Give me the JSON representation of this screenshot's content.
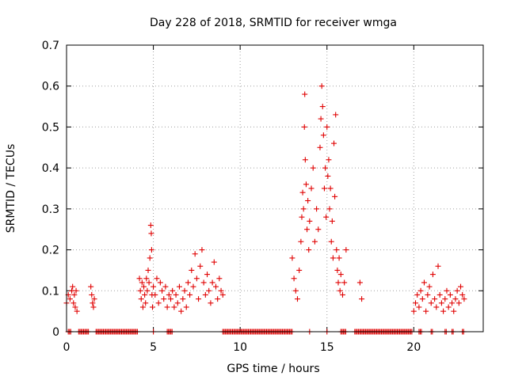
{
  "chart_data": {
    "type": "scatter",
    "title": "Day 228 of 2018, SRMTID for receiver wmga",
    "xlabel": "GPS time / hours",
    "ylabel": "SRMTID / TECUs",
    "xlim": [
      0,
      24
    ],
    "ylim": [
      0,
      0.7
    ],
    "xticks": [
      0,
      5,
      10,
      15,
      20
    ],
    "yticks": [
      0,
      0.1,
      0.2,
      0.3,
      0.4,
      0.5,
      0.6,
      0.7
    ],
    "ytick_labels": [
      "0",
      "0.1",
      "0.2",
      "0.3",
      "0.4",
      "0.5",
      "0.6",
      "0.7"
    ],
    "grid": true,
    "marker": "+",
    "color": "#e00000",
    "series": [
      {
        "name": "SRMTID",
        "points": [
          [
            0.0,
            0.07
          ],
          [
            0.1,
            0.09
          ],
          [
            0.2,
            0.08
          ],
          [
            0.3,
            0.1
          ],
          [
            0.35,
            0.11
          ],
          [
            0.4,
            0.07
          ],
          [
            0.45,
            0.09
          ],
          [
            0.5,
            0.06
          ],
          [
            0.55,
            0.1
          ],
          [
            0.6,
            0.05
          ],
          [
            1.4,
            0.11
          ],
          [
            1.45,
            0.09
          ],
          [
            1.5,
            0.07
          ],
          [
            1.55,
            0.06
          ],
          [
            1.6,
            0.08
          ],
          [
            4.2,
            0.13
          ],
          [
            4.25,
            0.1
          ],
          [
            4.3,
            0.08
          ],
          [
            4.35,
            0.12
          ],
          [
            4.4,
            0.06
          ],
          [
            4.45,
            0.11
          ],
          [
            4.5,
            0.09
          ],
          [
            4.55,
            0.07
          ],
          [
            4.6,
            0.13
          ],
          [
            4.65,
            0.1
          ],
          [
            4.7,
            0.15
          ],
          [
            4.75,
            0.12
          ],
          [
            4.8,
            0.18
          ],
          [
            4.85,
            0.26
          ],
          [
            4.88,
            0.24
          ],
          [
            4.9,
            0.2
          ],
          [
            4.92,
            0.09
          ],
          [
            4.95,
            0.06
          ],
          [
            5.0,
            0.11
          ],
          [
            5.1,
            0.09
          ],
          [
            5.2,
            0.13
          ],
          [
            5.3,
            0.07
          ],
          [
            5.4,
            0.12
          ],
          [
            5.5,
            0.1
          ],
          [
            5.6,
            0.08
          ],
          [
            5.7,
            0.11
          ],
          [
            5.8,
            0.06
          ],
          [
            5.9,
            0.09
          ],
          [
            6.0,
            0.08
          ],
          [
            6.1,
            0.1
          ],
          [
            6.2,
            0.06
          ],
          [
            6.3,
            0.09
          ],
          [
            6.4,
            0.07
          ],
          [
            6.5,
            0.11
          ],
          [
            6.6,
            0.05
          ],
          [
            6.7,
            0.08
          ],
          [
            6.8,
            0.1
          ],
          [
            6.9,
            0.06
          ],
          [
            7.0,
            0.12
          ],
          [
            7.1,
            0.09
          ],
          [
            7.2,
            0.15
          ],
          [
            7.3,
            0.11
          ],
          [
            7.4,
            0.19
          ],
          [
            7.5,
            0.13
          ],
          [
            7.6,
            0.08
          ],
          [
            7.7,
            0.16
          ],
          [
            7.8,
            0.2
          ],
          [
            7.9,
            0.12
          ],
          [
            8.0,
            0.09
          ],
          [
            8.1,
            0.14
          ],
          [
            8.2,
            0.1
          ],
          [
            8.3,
            0.07
          ],
          [
            8.4,
            0.12
          ],
          [
            8.5,
            0.17
          ],
          [
            8.6,
            0.11
          ],
          [
            8.7,
            0.08
          ],
          [
            8.8,
            0.13
          ],
          [
            8.9,
            0.1
          ],
          [
            9.0,
            0.09
          ],
          [
            13.0,
            0.18
          ],
          [
            13.1,
            0.13
          ],
          [
            13.2,
            0.1
          ],
          [
            13.3,
            0.08
          ],
          [
            13.4,
            0.15
          ],
          [
            13.5,
            0.22
          ],
          [
            13.55,
            0.28
          ],
          [
            13.6,
            0.34
          ],
          [
            13.65,
            0.3
          ],
          [
            13.7,
            0.5
          ],
          [
            13.72,
            0.58
          ],
          [
            13.75,
            0.42
          ],
          [
            13.8,
            0.36
          ],
          [
            13.85,
            0.25
          ],
          [
            13.9,
            0.32
          ],
          [
            13.95,
            0.2
          ],
          [
            14.0,
            0.27
          ],
          [
            14.1,
            0.35
          ],
          [
            14.2,
            0.4
          ],
          [
            14.3,
            0.22
          ],
          [
            14.4,
            0.3
          ],
          [
            14.5,
            0.25
          ],
          [
            14.6,
            0.45
          ],
          [
            14.65,
            0.52
          ],
          [
            14.7,
            0.6
          ],
          [
            14.75,
            0.55
          ],
          [
            14.8,
            0.48
          ],
          [
            14.85,
            0.35
          ],
          [
            14.9,
            0.4
          ],
          [
            14.95,
            0.28
          ],
          [
            15.0,
            0.5
          ],
          [
            15.05,
            0.38
          ],
          [
            15.1,
            0.42
          ],
          [
            15.15,
            0.3
          ],
          [
            15.2,
            0.35
          ],
          [
            15.25,
            0.22
          ],
          [
            15.3,
            0.27
          ],
          [
            15.35,
            0.18
          ],
          [
            15.4,
            0.46
          ],
          [
            15.45,
            0.33
          ],
          [
            15.5,
            0.53
          ],
          [
            15.55,
            0.2
          ],
          [
            15.6,
            0.15
          ],
          [
            15.65,
            0.12
          ],
          [
            15.7,
            0.18
          ],
          [
            15.75,
            0.1
          ],
          [
            15.8,
            0.14
          ],
          [
            15.9,
            0.09
          ],
          [
            16.0,
            0.12
          ],
          [
            16.1,
            0.2
          ],
          [
            16.9,
            0.12
          ],
          [
            17.0,
            0.08
          ],
          [
            20.0,
            0.05
          ],
          [
            20.1,
            0.07
          ],
          [
            20.2,
            0.09
          ],
          [
            20.3,
            0.06
          ],
          [
            20.4,
            0.1
          ],
          [
            20.5,
            0.08
          ],
          [
            20.6,
            0.12
          ],
          [
            20.7,
            0.05
          ],
          [
            20.8,
            0.09
          ],
          [
            20.9,
            0.11
          ],
          [
            21.0,
            0.07
          ],
          [
            21.1,
            0.14
          ],
          [
            21.2,
            0.08
          ],
          [
            21.3,
            0.06
          ],
          [
            21.4,
            0.16
          ],
          [
            21.5,
            0.09
          ],
          [
            21.6,
            0.07
          ],
          [
            21.7,
            0.05
          ],
          [
            21.8,
            0.08
          ],
          [
            21.9,
            0.1
          ],
          [
            22.0,
            0.06
          ],
          [
            22.1,
            0.09
          ],
          [
            22.2,
            0.07
          ],
          [
            22.3,
            0.05
          ],
          [
            22.4,
            0.08
          ],
          [
            22.5,
            0.1
          ],
          [
            22.6,
            0.07
          ],
          [
            22.7,
            0.11
          ],
          [
            22.8,
            0.09
          ],
          [
            22.9,
            0.08
          ]
        ],
        "zero_runs": [
          [
            0.1,
            0.3
          ],
          [
            0.7,
            1.3
          ],
          [
            1.7,
            4.1
          ],
          [
            5.0,
            5.05
          ],
          [
            5.8,
            6.1
          ],
          [
            9.0,
            13.0
          ],
          [
            14.0,
            14.05
          ],
          [
            15.0,
            15.05
          ],
          [
            15.8,
            16.1
          ],
          [
            16.6,
            19.9
          ],
          [
            20.3,
            20.5
          ],
          [
            21.0,
            21.1
          ],
          [
            21.8,
            21.9
          ],
          [
            22.2,
            22.3
          ],
          [
            22.8,
            22.9
          ]
        ]
      }
    ]
  }
}
